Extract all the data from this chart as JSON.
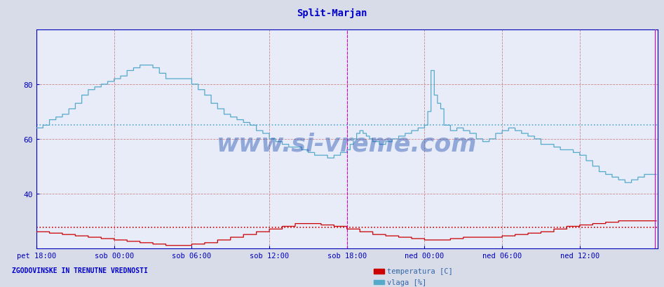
{
  "title": "Split-Marjan",
  "title_color": "#0000cc",
  "title_fontsize": 10,
  "fig_bg_color": "#d8dce8",
  "plot_bg_color": "#e8ecf8",
  "ylim": [
    20,
    100
  ],
  "yticks": [
    40,
    60,
    80
  ],
  "xlim_n": 576,
  "xtick_labels": [
    "pet 18:00",
    "sob 00:00",
    "sob 06:00",
    "sob 12:00",
    "sob 18:00",
    "ned 00:00",
    "ned 06:00",
    "ned 12:00"
  ],
  "xtick_positions": [
    0,
    72,
    144,
    216,
    288,
    360,
    432,
    504
  ],
  "vgrid_positions": [
    0,
    72,
    144,
    216,
    288,
    360,
    432,
    504,
    576
  ],
  "vline_magenta_solid": [
    574
  ],
  "vline_magenta_dashed": [
    288
  ],
  "hgrid_values": [
    40,
    60,
    80
  ],
  "vlaga_avg": 65,
  "temp_avg": 27.5,
  "temp_color": "#cc0000",
  "vlaga_color": "#55aacc",
  "temp_avg_color": "#cc0000",
  "vlaga_avg_color": "#55aacc",
  "grid_color": "#cc8888",
  "axis_color": "#0000bb",
  "tick_color": "#0000bb",
  "watermark": "www.si-vreme.com",
  "watermark_color": "#1144aa",
  "legend_items": [
    {
      "label": "temperatura [C]",
      "color": "#cc0000"
    },
    {
      "label": "vlaga [%]",
      "color": "#55aacc"
    }
  ],
  "bottom_text": "ZGODOVINSKE IN TRENUTNE VREDNOSTI",
  "bottom_text_color": "#0000cc"
}
